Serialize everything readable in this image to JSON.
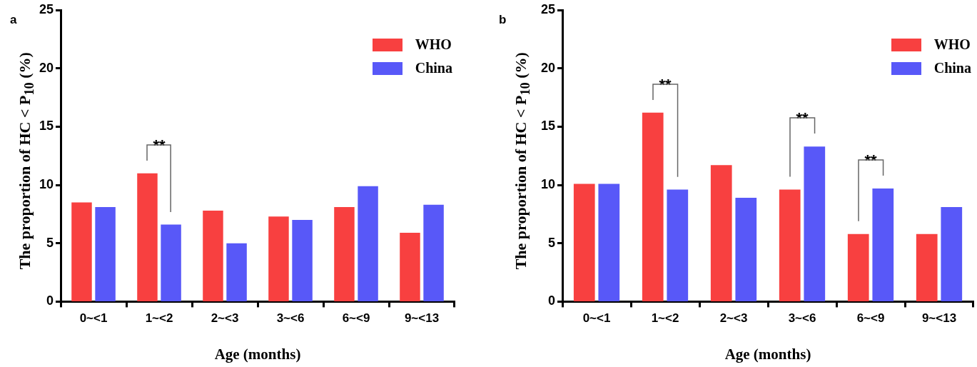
{
  "chart_data": [
    {
      "type": "bar",
      "title": "a",
      "xlabel": "Age (months)",
      "ylabel": "The proportion of HC < P$_{10}$ (%)",
      "categories": [
        "0~<1",
        "1~<2",
        "2~<3",
        "3~<6",
        "6~<9",
        "9~<13"
      ],
      "series": [
        {
          "name": "WHO",
          "color": "#f84040",
          "values": [
            8.5,
            11.0,
            7.8,
            7.3,
            8.1,
            5.9
          ]
        },
        {
          "name": "China",
          "color": "#5858f8",
          "values": [
            8.1,
            6.6,
            5.0,
            7.0,
            9.9,
            8.3
          ]
        }
      ],
      "ylim": [
        0,
        25
      ],
      "yticks": [
        0,
        5,
        10,
        15,
        20,
        25
      ],
      "legend": "top right",
      "annotations": [
        "**"
      ]
    },
    {
      "type": "bar",
      "title": "b",
      "xlabel": "Age (months)",
      "ylabel": "The proportion of HC < P$_{10}$ (%)",
      "categories": [
        "0~<1",
        "1~<2",
        "2~<3",
        "3~<6",
        "6~<9",
        "9~<13"
      ],
      "series": [
        {
          "name": "WHO",
          "color": "#f84040",
          "values": [
            10.1,
            16.2,
            11.7,
            9.6,
            5.8,
            5.8
          ]
        },
        {
          "name": "China",
          "color": "#5858f8",
          "values": [
            10.1,
            9.6,
            8.9,
            13.3,
            9.7,
            8.1
          ]
        }
      ],
      "ylim": [
        0,
        25
      ],
      "yticks": [
        0,
        5,
        10,
        15,
        20,
        25
      ],
      "legend": "top right",
      "annotations": [
        "**",
        "**",
        "**"
      ]
    }
  ]
}
